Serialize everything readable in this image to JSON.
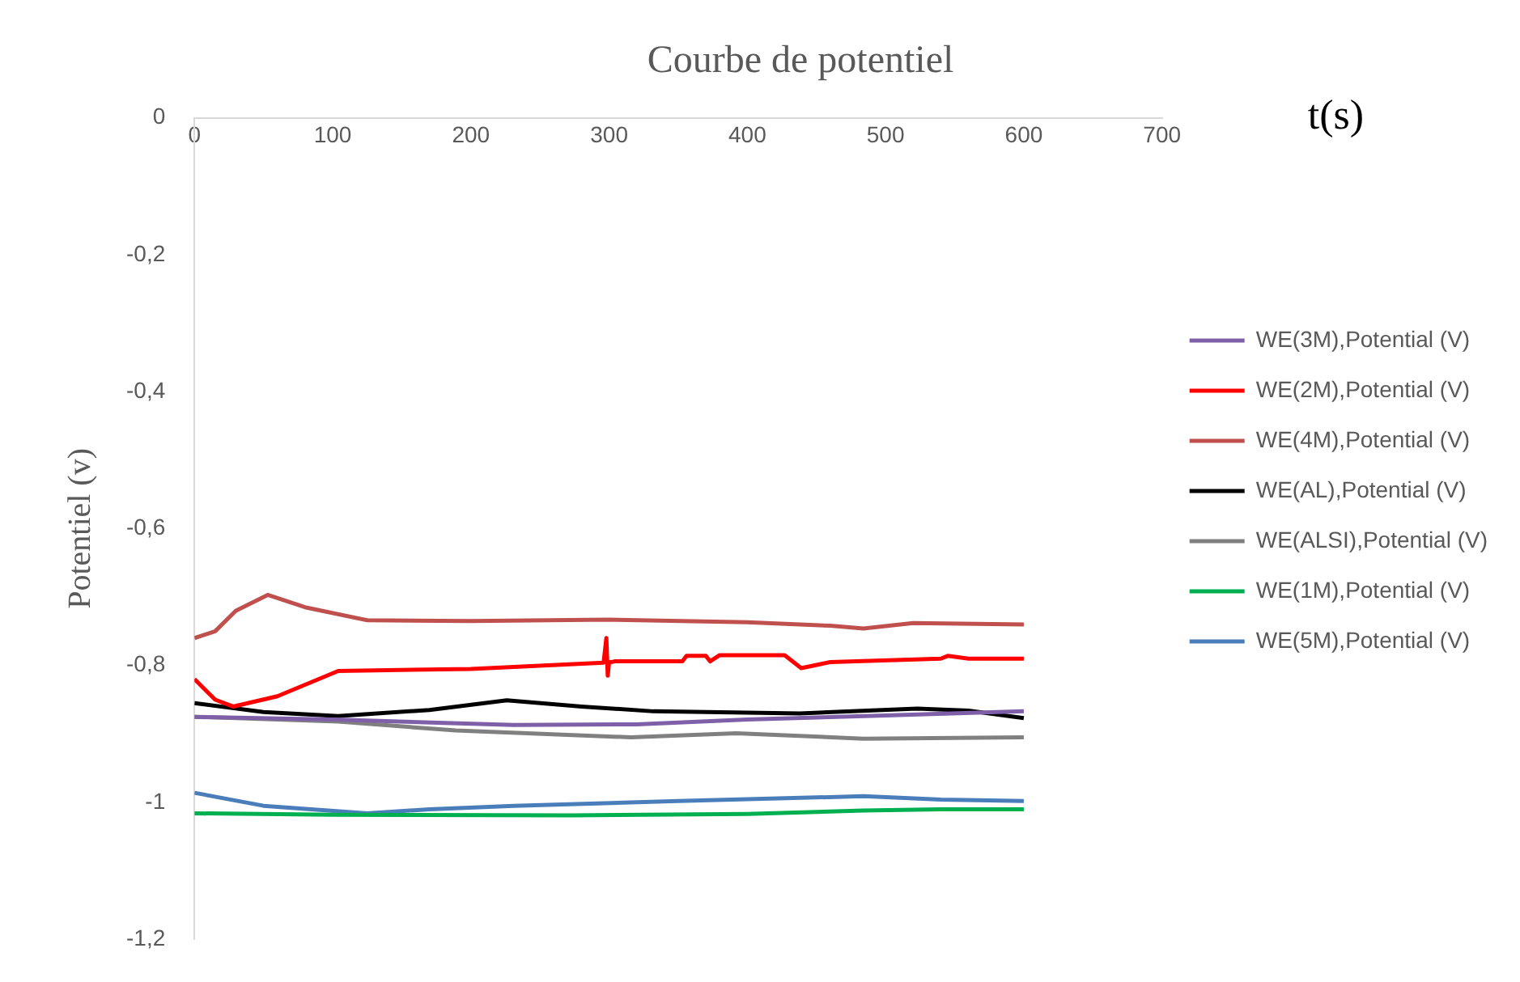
{
  "chart_data": {
    "type": "line",
    "title": "Courbe de potentiel",
    "xlabel": "t(s)",
    "ylabel": "Potentiel (v)",
    "xlim": [
      0,
      700
    ],
    "xticks": [
      0,
      100,
      200,
      300,
      400,
      500,
      600,
      700
    ],
    "ylim": [
      -1.2,
      0
    ],
    "yticks": [
      {
        "value": 0,
        "label": "0"
      },
      {
        "value": -0.2,
        "label": "-0,2"
      },
      {
        "value": -0.4,
        "label": "-0,4"
      },
      {
        "value": -0.6,
        "label": "-0,6"
      },
      {
        "value": -0.8,
        "label": "-0,8"
      },
      {
        "value": -1,
        "label": "-1"
      },
      {
        "value": -1.2,
        "label": "-1,2"
      }
    ],
    "grid": false,
    "legend": "right",
    "marker": "none",
    "line_style": "solid",
    "series": [
      {
        "name": "WE(3M),Potential (V)",
        "color": "#7f5fa8",
        "x": [
          0,
          100,
          231,
          320,
          400,
          500,
          600
        ],
        "values": [
          -0.875,
          -0.879,
          -0.887,
          -0.886,
          -0.879,
          -0.873,
          -0.867
        ]
      },
      {
        "name": "WE(2M),Potential (V)",
        "color": "#ff0000",
        "x": [
          0,
          15,
          28,
          60,
          104,
          200,
          296,
          298,
          299,
          300,
          302,
          304,
          353,
          356,
          370,
          373,
          380,
          427,
          439,
          460,
          540,
          545,
          560,
          600
        ],
        "values": [
          -0.82,
          -0.85,
          -0.86,
          -0.845,
          -0.808,
          -0.805,
          -0.796,
          -0.76,
          -0.815,
          -0.795,
          -0.795,
          -0.794,
          -0.794,
          -0.786,
          -0.786,
          -0.794,
          -0.785,
          -0.785,
          -0.804,
          -0.795,
          -0.79,
          -0.786,
          -0.79,
          -0.79
        ]
      },
      {
        "name": "WE(4M),Potential (V)",
        "color": "#c0504d",
        "x": [
          0,
          15,
          30,
          53,
          80,
          125,
          200,
          300,
          400,
          460,
          484,
          520,
          600
        ],
        "values": [
          -0.76,
          -0.75,
          -0.72,
          -0.697,
          -0.715,
          -0.734,
          -0.735,
          -0.733,
          -0.737,
          -0.742,
          -0.746,
          -0.738,
          -0.74
        ]
      },
      {
        "name": "WE(AL),Potential (V)",
        "color": "#000000",
        "x": [
          0,
          50,
          104,
          170,
          226,
          280,
          332,
          438,
          523,
          560,
          600
        ],
        "values": [
          -0.855,
          -0.868,
          -0.874,
          -0.865,
          -0.851,
          -0.86,
          -0.867,
          -0.87,
          -0.863,
          -0.866,
          -0.877
        ]
      },
      {
        "name": "WE(ALSI),Potential (V)",
        "color": "#808080",
        "x": [
          0,
          104,
          189,
          316,
          392,
          484,
          600
        ],
        "values": [
          -0.875,
          -0.882,
          -0.895,
          -0.905,
          -0.899,
          -0.907,
          -0.905
        ]
      },
      {
        "name": "WE(1M),Potential (V)",
        "color": "#00b050",
        "x": [
          0,
          100,
          273,
          400,
          484,
          540,
          600
        ],
        "values": [
          -1.016,
          -1.018,
          -1.019,
          -1.017,
          -1.012,
          -1.01,
          -1.01
        ]
      },
      {
        "name": "WE(5M),Potential (V)",
        "color": "#4a7ebb",
        "x": [
          0,
          50,
          125,
          170,
          231,
          350,
          484,
          540,
          600
        ],
        "values": [
          -0.986,
          -1.005,
          -1.016,
          -1.01,
          -1.005,
          -0.998,
          -0.991,
          -0.996,
          -0.998
        ]
      }
    ]
  }
}
